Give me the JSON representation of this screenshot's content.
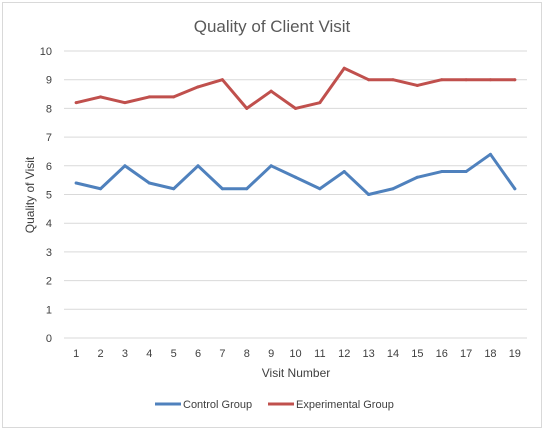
{
  "chart_data": {
    "type": "line",
    "title": "Quality of Client Visit",
    "xlabel": "Visit Number",
    "ylabel": "Quality of Visit",
    "x": [
      1,
      2,
      3,
      4,
      5,
      6,
      7,
      8,
      9,
      10,
      11,
      12,
      13,
      14,
      15,
      16,
      17,
      18,
      19
    ],
    "ylim": [
      0,
      10
    ],
    "yticks": [
      0,
      1,
      2,
      3,
      4,
      5,
      6,
      7,
      8,
      9,
      10
    ],
    "grid": true,
    "legend_position": "bottom",
    "series": [
      {
        "name": "Control Group",
        "color": "#4f81bd",
        "values": [
          5.4,
          5.2,
          6.0,
          5.4,
          5.2,
          6.0,
          5.2,
          5.2,
          6.0,
          5.6,
          5.2,
          5.8,
          5.0,
          5.2,
          5.6,
          5.8,
          5.8,
          6.4,
          5.2
        ]
      },
      {
        "name": "Experimental Group",
        "color": "#c0504d",
        "values": [
          8.2,
          8.4,
          8.2,
          8.4,
          8.4,
          8.75,
          9.0,
          8.0,
          8.6,
          8.0,
          8.2,
          9.4,
          9.0,
          9.0,
          8.8,
          9.0,
          9.0,
          9.0,
          9.0
        ]
      }
    ]
  }
}
